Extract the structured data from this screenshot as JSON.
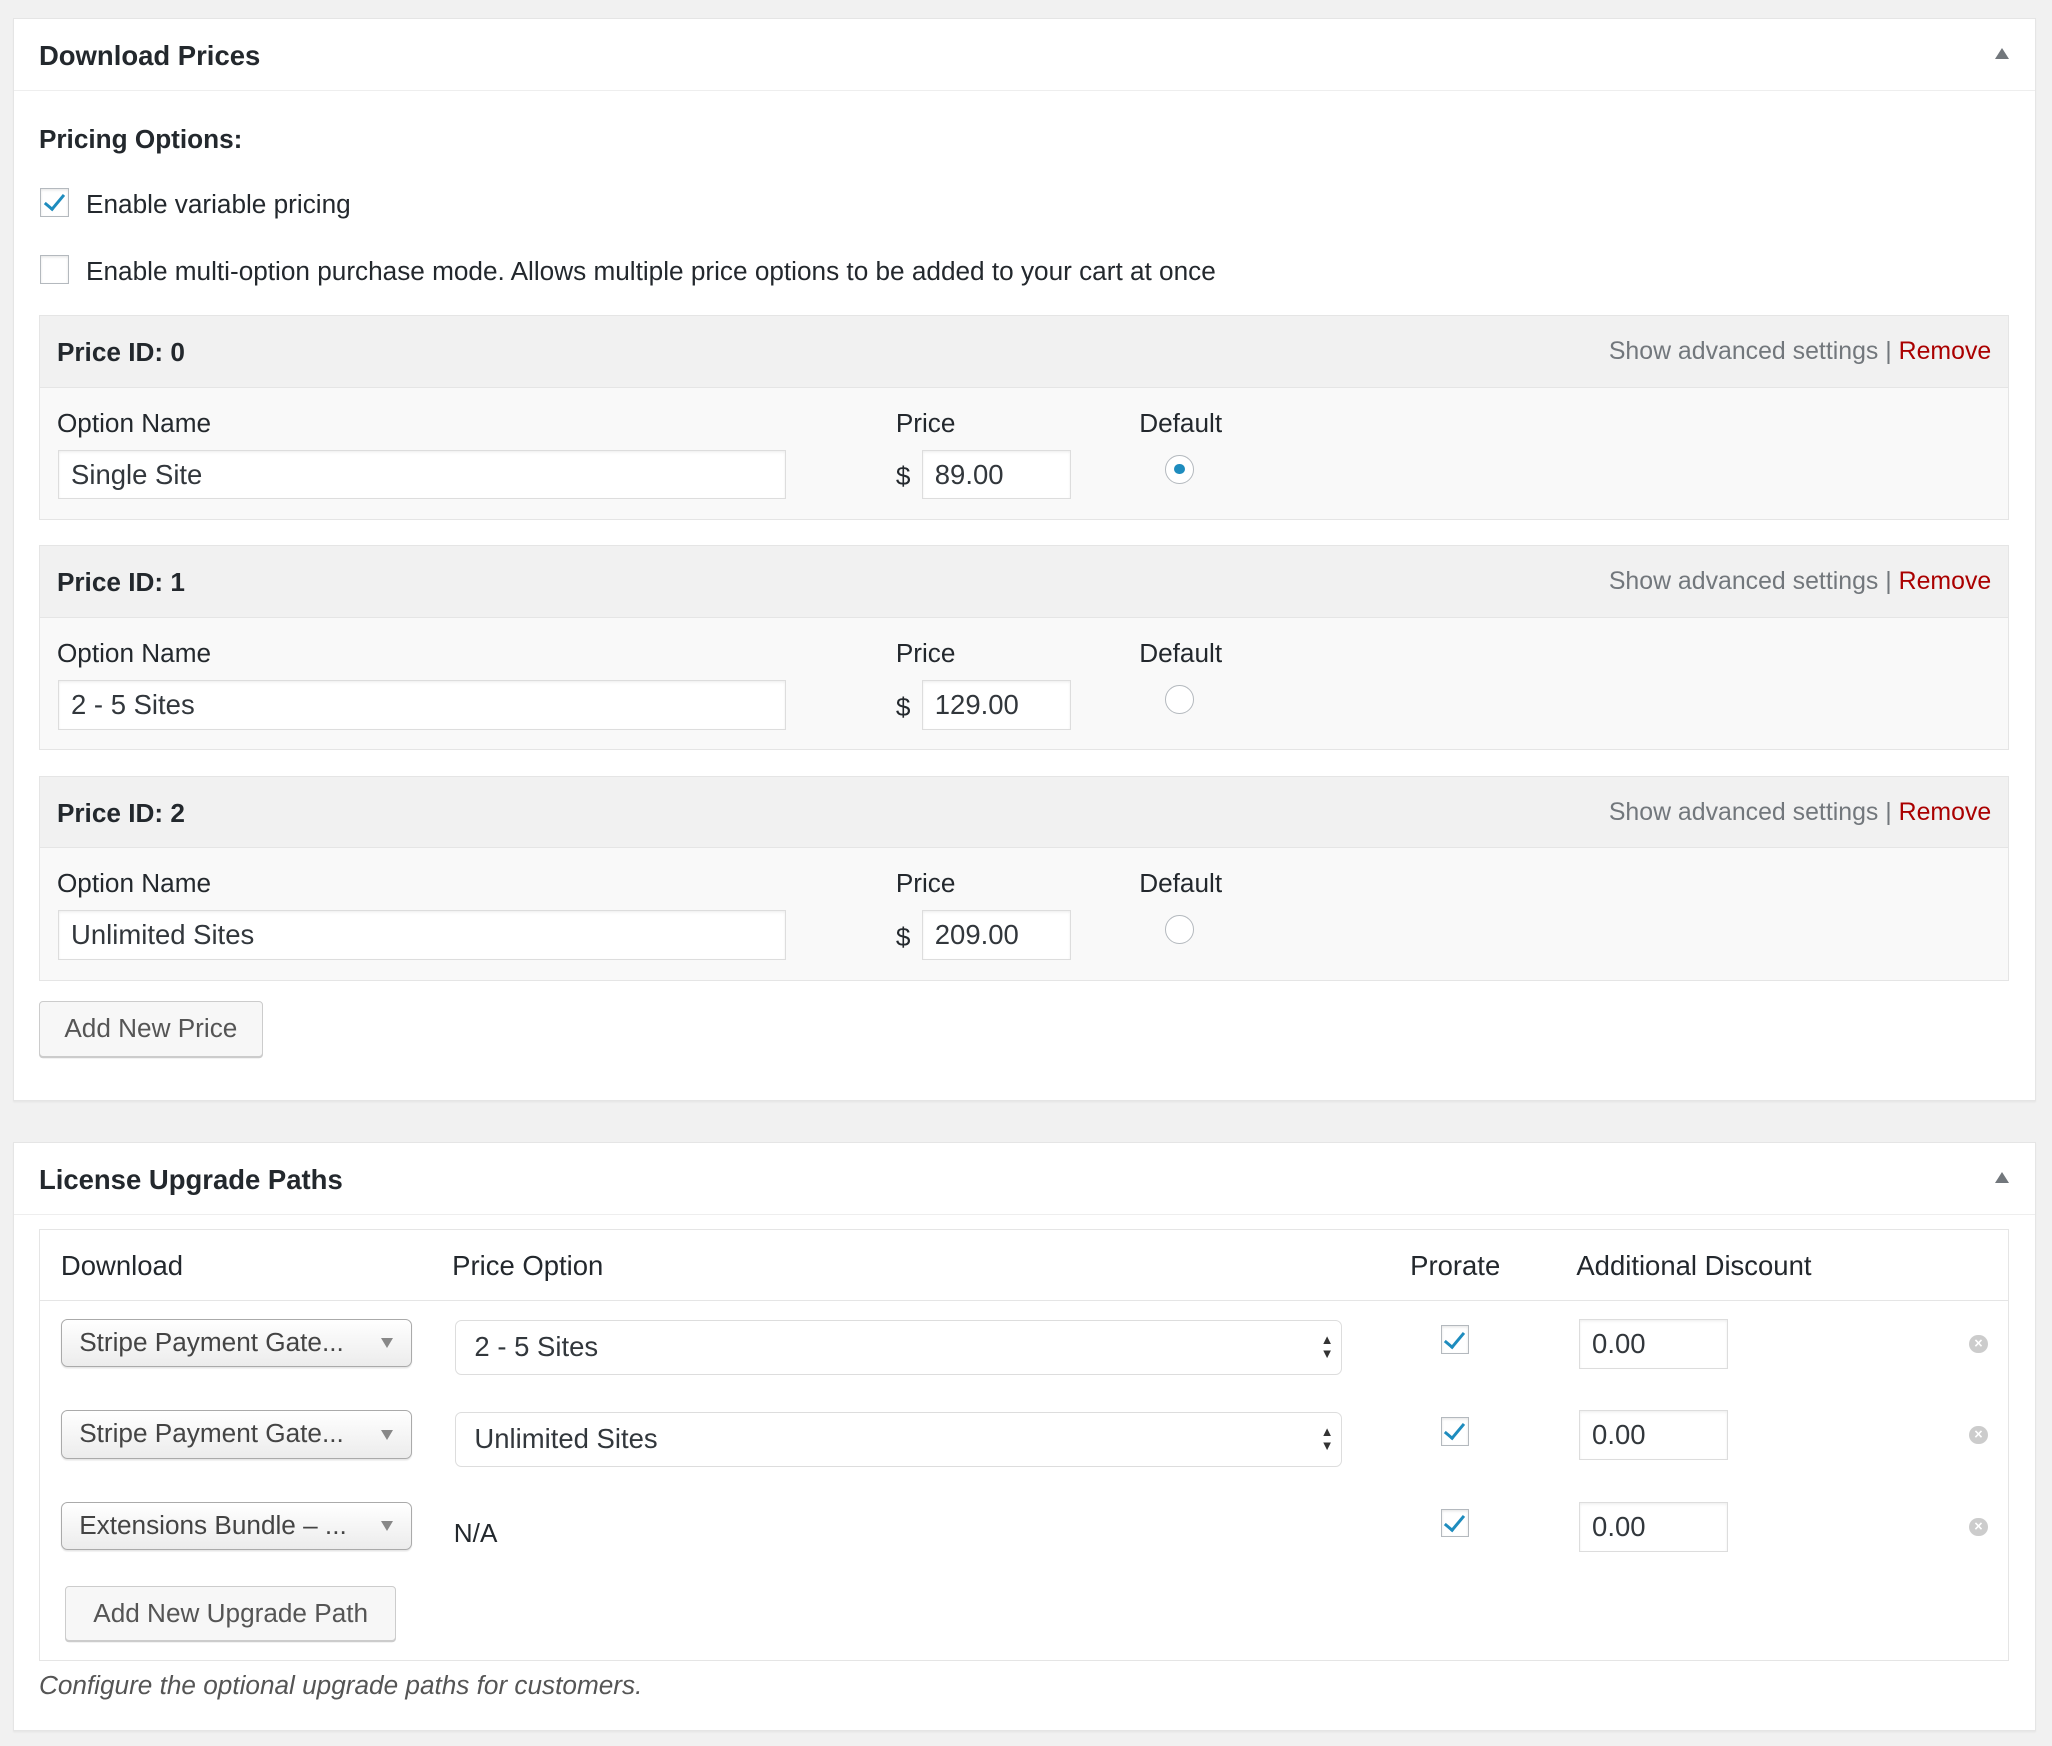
{
  "download_prices": {
    "title": "Download Prices",
    "pricing_options_label": "Pricing Options:",
    "enable_variable_pricing": {
      "label": "Enable variable pricing",
      "checked": true
    },
    "enable_multi_option": {
      "label": "Enable multi-option purchase mode. Allows multiple price options to be added to your cart at once",
      "checked": false
    },
    "column_labels": {
      "option_name": "Option Name",
      "price": "Price",
      "default": "Default",
      "currency": "$"
    },
    "show_advanced_label": "Show advanced settings",
    "separator": "|",
    "remove_label": "Remove",
    "prices": [
      {
        "header": "Price ID: 0",
        "name": "Single Site",
        "price": "89.00",
        "default": true
      },
      {
        "header": "Price ID: 1",
        "name": "2 - 5 Sites",
        "price": "129.00",
        "default": false
      },
      {
        "header": "Price ID: 2",
        "name": "Unlimited Sites",
        "price": "209.00",
        "default": false
      }
    ],
    "add_new_price_label": "Add New Price"
  },
  "license_upgrade_paths": {
    "title": "License Upgrade Paths",
    "columns": [
      "Download",
      "Price Option",
      "Prorate",
      "Additional Discount"
    ],
    "rows": [
      {
        "download": "Stripe Payment Gate...",
        "price_option": "2 - 5 Sites",
        "prorate": true,
        "discount": "0.00"
      },
      {
        "download": "Stripe Payment Gate...",
        "price_option": "Unlimited Sites",
        "prorate": true,
        "discount": "0.00"
      },
      {
        "download": "Extensions Bundle – ...",
        "price_option": "N/A",
        "prorate": true,
        "discount": "0.00"
      }
    ],
    "add_new_upgrade_path_label": "Add New Upgrade Path",
    "description": "Configure the optional upgrade paths for customers."
  },
  "colors": {
    "accent": "#1e8cbe",
    "remove": "#aa0000"
  }
}
